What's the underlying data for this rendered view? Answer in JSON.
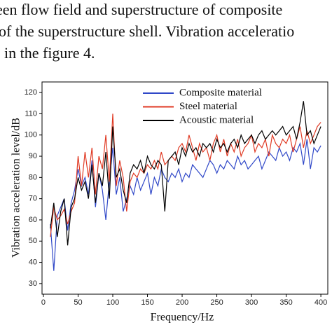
{
  "paragraph": {
    "lines": [
      "een flow field and superstructure of composite",
      "of the superstructure shell. Vibration acceleratio",
      "in the figure 4."
    ]
  },
  "chart_data": {
    "type": "line",
    "xlabel": "Frequency/Hz",
    "ylabel": "Vibration acceleration level/dB",
    "xlim": [
      -2,
      410
    ],
    "ylim": [
      25,
      125
    ],
    "xticks": [
      0,
      50,
      100,
      150,
      200,
      250,
      300,
      350,
      400
    ],
    "yticks": [
      30,
      40,
      50,
      60,
      70,
      80,
      90,
      100,
      110,
      120
    ],
    "legend": "top",
    "x": [
      10,
      15,
      20,
      25,
      30,
      35,
      40,
      45,
      50,
      55,
      60,
      65,
      70,
      75,
      80,
      85,
      90,
      95,
      100,
      105,
      110,
      115,
      120,
      125,
      130,
      135,
      140,
      145,
      150,
      155,
      160,
      165,
      170,
      175,
      180,
      185,
      190,
      195,
      200,
      205,
      210,
      215,
      220,
      225,
      230,
      235,
      240,
      245,
      250,
      255,
      260,
      265,
      270,
      275,
      280,
      285,
      290,
      295,
      300,
      305,
      310,
      315,
      320,
      325,
      330,
      335,
      340,
      345,
      350,
      355,
      360,
      365,
      370,
      375,
      380,
      385,
      390,
      395,
      400
    ],
    "series": [
      {
        "name": "Composite material",
        "color": "#3048c8",
        "values": [
          58,
          36,
          62,
          66,
          70,
          55,
          68,
          74,
          84,
          76,
          80,
          72,
          88,
          66,
          82,
          74,
          60,
          78,
          94,
          72,
          80,
          64,
          70,
          76,
          72,
          80,
          74,
          78,
          82,
          72,
          80,
          76,
          84,
          80,
          78,
          82,
          80,
          84,
          78,
          82,
          80,
          86,
          84,
          82,
          80,
          84,
          88,
          86,
          82,
          86,
          84,
          88,
          86,
          84,
          90,
          86,
          88,
          84,
          86,
          88,
          90,
          84,
          88,
          92,
          90,
          88,
          94,
          90,
          92,
          88,
          94,
          92,
          96,
          86,
          98,
          84,
          94,
          92,
          95
        ]
      },
      {
        "name": "Steel material",
        "color": "#e03a24",
        "values": [
          52,
          66,
          60,
          62,
          65,
          58,
          64,
          68,
          90,
          76,
          92,
          80,
          94,
          72,
          90,
          84,
          100,
          78,
          110,
          76,
          88,
          80,
          64,
          78,
          82,
          80,
          84,
          82,
          86,
          84,
          88,
          84,
          92,
          86,
          88,
          90,
          88,
          94,
          96,
          92,
          100,
          94,
          88,
          96,
          92,
          94,
          88,
          96,
          100,
          92,
          98,
          90,
          96,
          92,
          98,
          90,
          94,
          96,
          100,
          92,
          96,
          94,
          98,
          90,
          100,
          96,
          94,
          98,
          96,
          100,
          92,
          98,
          104,
          94,
          102,
          96,
          100,
          104,
          106
        ]
      },
      {
        "name": "Acoustic material",
        "color": "#000000",
        "values": [
          56,
          68,
          52,
          64,
          70,
          48,
          66,
          70,
          80,
          74,
          78,
          70,
          86,
          68,
          82,
          76,
          92,
          70,
          104,
          80,
          84,
          74,
          68,
          82,
          86,
          84,
          88,
          82,
          90,
          86,
          84,
          88,
          86,
          64,
          88,
          90,
          92,
          86,
          94,
          90,
          96,
          92,
          94,
          90,
          96,
          94,
          96,
          92,
          98,
          94,
          96,
          92,
          96,
          98,
          94,
          100,
          96,
          98,
          100,
          96,
          100,
          102,
          98,
          100,
          102,
          100,
          102,
          104,
          100,
          102,
          104,
          98,
          106,
          116,
          100,
          102,
          96,
          100,
          104
        ]
      }
    ]
  }
}
